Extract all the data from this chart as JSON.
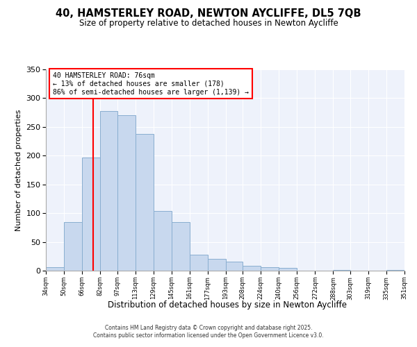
{
  "title": "40, HAMSTERLEY ROAD, NEWTON AYCLIFFE, DL5 7QB",
  "subtitle": "Size of property relative to detached houses in Newton Aycliffe",
  "xlabel": "Distribution of detached houses by size in Newton Aycliffe",
  "ylabel": "Number of detached properties",
  "bar_color": "#c8d8ee",
  "bar_edge_color": "#89aed0",
  "bin_labels": [
    "34sqm",
    "50sqm",
    "66sqm",
    "82sqm",
    "97sqm",
    "113sqm",
    "129sqm",
    "145sqm",
    "161sqm",
    "177sqm",
    "193sqm",
    "208sqm",
    "224sqm",
    "240sqm",
    "256sqm",
    "272sqm",
    "288sqm",
    "303sqm",
    "319sqm",
    "335sqm",
    "351sqm"
  ],
  "bin_edges": [
    34,
    50,
    66,
    82,
    97,
    113,
    129,
    145,
    161,
    177,
    193,
    208,
    224,
    240,
    256,
    272,
    288,
    303,
    319,
    335,
    351
  ],
  "counts": [
    6,
    84,
    197,
    277,
    270,
    238,
    104,
    84,
    28,
    20,
    16,
    9,
    6,
    5,
    0,
    0,
    1,
    0,
    0,
    1
  ],
  "property_size": 76,
  "annotation_title": "40 HAMSTERLEY ROAD: 76sqm",
  "annotation_line1": "← 13% of detached houses are smaller (178)",
  "annotation_line2": "86% of semi-detached houses are larger (1,139) →",
  "vline_x": 76,
  "ylim": [
    0,
    350
  ],
  "yticks": [
    0,
    50,
    100,
    150,
    200,
    250,
    300,
    350
  ],
  "footer_line1": "Contains HM Land Registry data © Crown copyright and database right 2025.",
  "footer_line2": "Contains public sector information licensed under the Open Government Licence v3.0.",
  "background_color": "#eef2fb"
}
